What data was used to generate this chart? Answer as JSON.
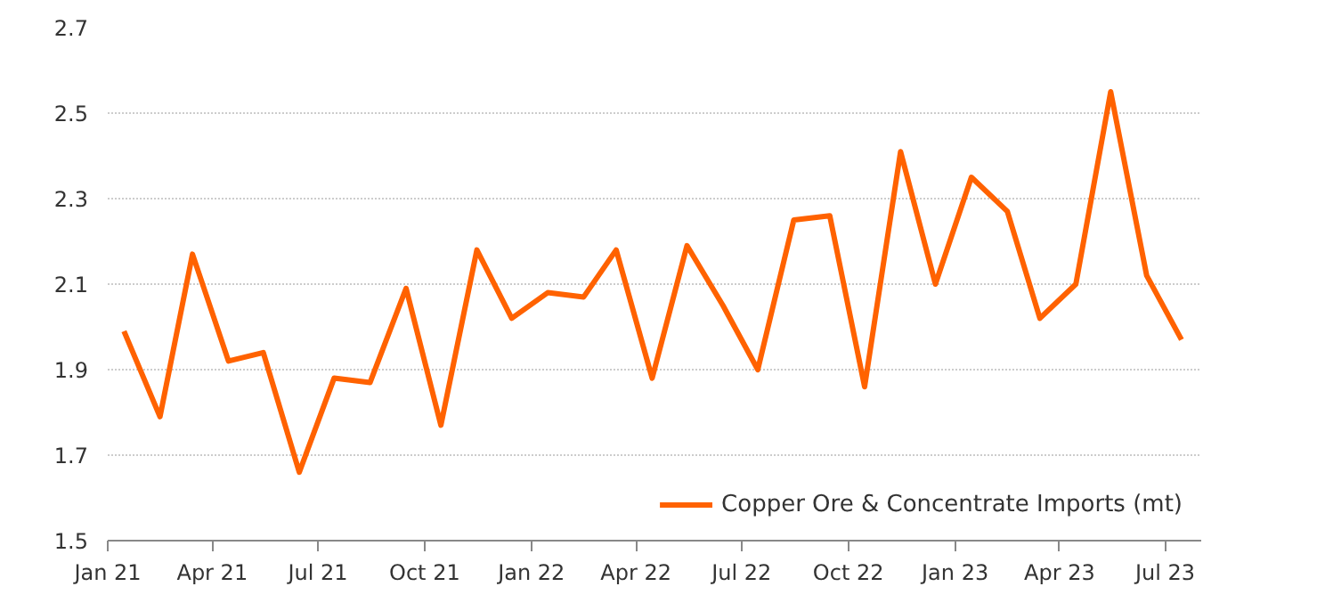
{
  "chart_data": {
    "type": "line",
    "x": [
      "2021-01-15",
      "2021-02-15",
      "2021-03-15",
      "2021-04-15",
      "2021-05-15",
      "2021-06-15",
      "2021-07-15",
      "2021-08-15",
      "2021-09-15",
      "2021-10-15",
      "2021-11-15",
      "2021-12-15",
      "2022-01-15",
      "2022-02-15",
      "2022-03-15",
      "2022-04-15",
      "2022-05-15",
      "2022-06-15",
      "2022-07-15",
      "2022-08-15",
      "2022-09-15",
      "2022-10-15",
      "2022-11-15",
      "2022-12-15",
      "2023-01-15",
      "2023-02-15",
      "2023-03-15",
      "2023-04-15",
      "2023-05-15",
      "2023-06-15",
      "2023-07-15"
    ],
    "series": [
      {
        "name": "Copper Ore & Concentrate Imports (mt)",
        "color": "#ff6200",
        "values": [
          1.99,
          1.79,
          2.17,
          1.92,
          1.94,
          1.66,
          1.88,
          1.87,
          2.09,
          1.77,
          2.18,
          2.02,
          2.08,
          2.07,
          2.18,
          1.88,
          2.19,
          2.05,
          1.9,
          2.25,
          2.26,
          1.86,
          2.41,
          2.1,
          2.35,
          2.27,
          2.02,
          2.1,
          2.55,
          2.12,
          1.97
        ]
      }
    ],
    "xlim": [
      "2021-01-01",
      "2023-08-01"
    ],
    "xticks": [
      {
        "value": "2021-01-01",
        "label": "Jan 21"
      },
      {
        "value": "2021-04-01",
        "label": "Apr 21"
      },
      {
        "value": "2021-07-01",
        "label": "Jul 21"
      },
      {
        "value": "2021-10-01",
        "label": "Oct 21"
      },
      {
        "value": "2022-01-01",
        "label": "Jan 22"
      },
      {
        "value": "2022-04-01",
        "label": "Apr 22"
      },
      {
        "value": "2022-07-01",
        "label": "Jul 22"
      },
      {
        "value": "2022-10-01",
        "label": "Oct 22"
      },
      {
        "value": "2023-01-01",
        "label": "Jan 23"
      },
      {
        "value": "2023-04-01",
        "label": "Apr 23"
      },
      {
        "value": "2023-07-01",
        "label": "Jul 23"
      }
    ],
    "ylim": [
      1.5,
      2.7
    ],
    "yticks": [
      1.5,
      1.7,
      1.9,
      2.1,
      2.3,
      2.5,
      2.7
    ],
    "grid": "y",
    "legend": "bottom right",
    "marker": "none",
    "line_style": "solid"
  }
}
